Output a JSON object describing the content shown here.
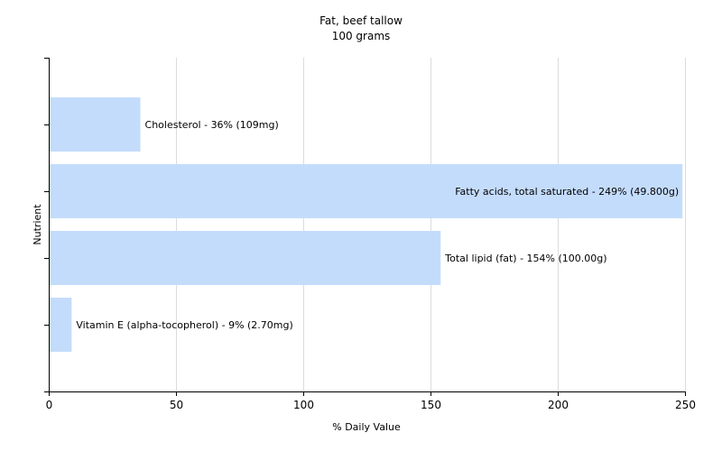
{
  "chart_data": {
    "type": "bar",
    "orientation": "horizontal",
    "title": "Fat, beef tallow",
    "subtitle": "100 grams",
    "xlabel": "% Daily Value",
    "ylabel": "Nutrient",
    "xlim": [
      0,
      250
    ],
    "x_ticks": [
      0,
      50,
      100,
      150,
      200,
      250
    ],
    "x_tick_labels": [
      "0",
      "50",
      "100",
      "150",
      "200",
      "250"
    ],
    "grid": "vertical",
    "bar_color": "#c4dcfc",
    "categories": [
      "Cholesterol",
      "Fatty acids, total saturated",
      "Total lipid (fat)",
      "Vitamin E (alpha-tocopherol)"
    ],
    "values": [
      36,
      249,
      154,
      9
    ],
    "data_labels": [
      "Cholesterol - 36% (109mg)",
      "Fatty acids, total saturated - 249% (49.800g)",
      "Total lipid (fat) - 154% (100.00g)",
      "Vitamin E (alpha-tocopherol) - 9% (2.70mg)"
    ]
  }
}
